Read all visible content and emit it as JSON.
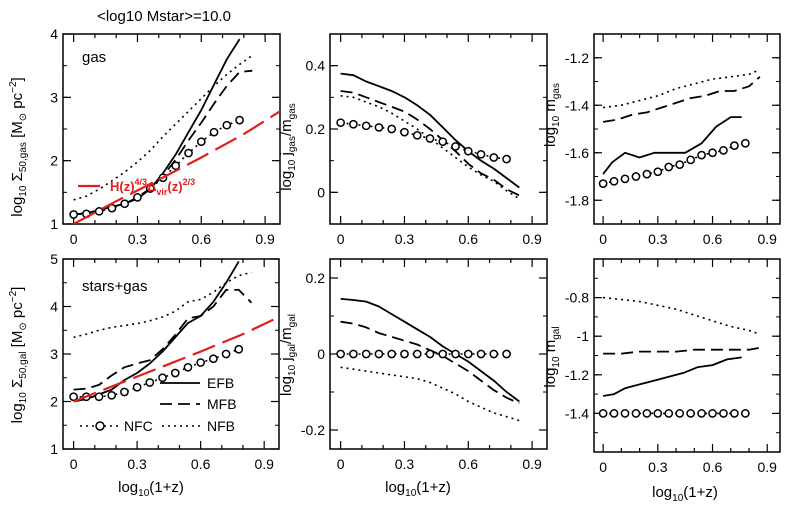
{
  "figure_title": "<log10 Mstar>=10.0",
  "line_styles": {
    "EFB": {
      "dash": "",
      "width": 1.8
    },
    "MFB": {
      "dash": "12,6",
      "width": 1.8
    },
    "NFB": {
      "dash": "2,4",
      "width": 1.6
    },
    "NFC": {
      "dash": "2,4",
      "width": 1.6
    },
    "model": {
      "dash": "24,8",
      "width": 2.2
    }
  },
  "colors": {
    "curves": "#000000",
    "model": "#e0201e"
  },
  "chart_data": [
    {
      "type": "line",
      "id": "gas-surface-density",
      "title": "",
      "inset_label": "gas",
      "xlabel": "",
      "ylabel": "log10 Σ50,gas [M⊙ pc−2]",
      "xlim": [
        -0.05,
        0.97
      ],
      "ylim": [
        1,
        4
      ],
      "xticks": [
        "0",
        "0.3",
        "0.6",
        "0.9"
      ],
      "yticks": [
        "1",
        "2",
        "3",
        "4"
      ],
      "series": [
        {
          "name": "EFB",
          "x": [
            0.0,
            0.06,
            0.12,
            0.18,
            0.24,
            0.3,
            0.36,
            0.42,
            0.48,
            0.54,
            0.6,
            0.66,
            0.72,
            0.78
          ],
          "y": [
            1.15,
            1.17,
            1.22,
            1.27,
            1.32,
            1.4,
            1.55,
            1.8,
            2.1,
            2.45,
            2.8,
            3.2,
            3.6,
            3.92
          ]
        },
        {
          "name": "MFB",
          "x": [
            0.0,
            0.06,
            0.12,
            0.18,
            0.24,
            0.3,
            0.36,
            0.42,
            0.48,
            0.54,
            0.6,
            0.66,
            0.72,
            0.78,
            0.84
          ],
          "y": [
            1.15,
            1.17,
            1.22,
            1.27,
            1.32,
            1.42,
            1.56,
            1.76,
            2.02,
            2.32,
            2.6,
            2.9,
            3.18,
            3.4,
            3.42
          ]
        },
        {
          "name": "NFB",
          "x": [
            0.0,
            0.06,
            0.12,
            0.18,
            0.24,
            0.3,
            0.36,
            0.42,
            0.48,
            0.54,
            0.6,
            0.66,
            0.72,
            0.78,
            0.84
          ],
          "y": [
            1.38,
            1.44,
            1.55,
            1.68,
            1.82,
            1.98,
            2.16,
            2.38,
            2.58,
            2.78,
            2.98,
            3.18,
            3.36,
            3.52,
            3.66
          ]
        },
        {
          "name": "NFC",
          "x": [
            0.0,
            0.06,
            0.12,
            0.18,
            0.24,
            0.3,
            0.36,
            0.42,
            0.48,
            0.54,
            0.6,
            0.66,
            0.72,
            0.78
          ],
          "y": [
            1.15,
            1.16,
            1.2,
            1.25,
            1.32,
            1.42,
            1.56,
            1.73,
            1.92,
            2.12,
            2.3,
            2.45,
            2.56,
            2.64
          ]
        },
        {
          "name": "H(z)4/3Δvir(z)2/3",
          "x": [
            0.0,
            0.2,
            0.4,
            0.6,
            0.8,
            0.97
          ],
          "y": [
            1.0,
            1.36,
            1.7,
            2.05,
            2.42,
            2.78
          ]
        }
      ],
      "legend": [
        {
          "series": "H(z)4/3Δvir(z)2/3",
          "label": "H(z)",
          "sup1": "4/3",
          "mid": "Δ",
          "sub": "vir",
          "tail": "(z)",
          "sup2": "2/3"
        }
      ]
    },
    {
      "type": "line",
      "id": "gas-specific-angular-momentum",
      "title": "",
      "xlabel": "",
      "ylabel": "log10 jgas/mgas",
      "xlim": [
        -0.05,
        0.97
      ],
      "ylim": [
        -0.1,
        0.5
      ],
      "xticks": [
        "0",
        "0.3",
        "0.6",
        "0.9"
      ],
      "yticks": [
        "0",
        "0.2",
        "0.4"
      ],
      "series": [
        {
          "name": "EFB",
          "x": [
            0.0,
            0.06,
            0.12,
            0.18,
            0.24,
            0.3,
            0.36,
            0.42,
            0.48,
            0.54,
            0.6,
            0.66,
            0.72,
            0.78,
            0.84
          ],
          "y": [
            0.375,
            0.37,
            0.35,
            0.335,
            0.32,
            0.3,
            0.275,
            0.245,
            0.205,
            0.165,
            0.13,
            0.1,
            0.075,
            0.045,
            0.015
          ]
        },
        {
          "name": "MFB",
          "x": [
            0.0,
            0.06,
            0.12,
            0.18,
            0.24,
            0.3,
            0.36,
            0.42,
            0.48,
            0.54,
            0.6,
            0.66,
            0.72,
            0.78,
            0.84
          ],
          "y": [
            0.32,
            0.315,
            0.3,
            0.285,
            0.27,
            0.255,
            0.23,
            0.2,
            0.165,
            0.13,
            0.09,
            0.06,
            0.04,
            0.01,
            -0.01
          ]
        },
        {
          "name": "NFB",
          "x": [
            0.0,
            0.06,
            0.12,
            0.18,
            0.24,
            0.3,
            0.36,
            0.42,
            0.48,
            0.54,
            0.6,
            0.66,
            0.72,
            0.78,
            0.84
          ],
          "y": [
            0.305,
            0.3,
            0.285,
            0.27,
            0.25,
            0.225,
            0.2,
            0.17,
            0.14,
            0.11,
            0.08,
            0.055,
            0.035,
            0.005,
            -0.02
          ]
        },
        {
          "name": "NFC",
          "x": [
            0.0,
            0.06,
            0.12,
            0.18,
            0.24,
            0.3,
            0.36,
            0.42,
            0.48,
            0.54,
            0.6,
            0.66,
            0.72,
            0.78
          ],
          "y": [
            0.22,
            0.215,
            0.21,
            0.205,
            0.2,
            0.19,
            0.18,
            0.17,
            0.16,
            0.145,
            0.13,
            0.12,
            0.11,
            0.105
          ]
        }
      ]
    },
    {
      "type": "line",
      "id": "gas-mass-fraction",
      "title": "",
      "xlabel": "",
      "ylabel": "log10 mgas",
      "xlim": [
        -0.05,
        0.97
      ],
      "ylim": [
        -1.9,
        -1.1
      ],
      "xticks": [
        "0",
        "0.3",
        "0.6",
        "0.9"
      ],
      "yticks": [
        "-1.8",
        "-1.6",
        "-1.4",
        "-1.2"
      ],
      "series": [
        {
          "name": "EFB",
          "x": [
            0.0,
            0.05,
            0.12,
            0.2,
            0.28,
            0.36,
            0.45,
            0.54,
            0.62,
            0.7,
            0.76
          ],
          "y": [
            -1.69,
            -1.64,
            -1.6,
            -1.62,
            -1.6,
            -1.6,
            -1.6,
            -1.56,
            -1.49,
            -1.45,
            -1.45
          ]
        },
        {
          "name": "MFB",
          "x": [
            0.0,
            0.08,
            0.16,
            0.24,
            0.32,
            0.4,
            0.48,
            0.56,
            0.64,
            0.72,
            0.8,
            0.86
          ],
          "y": [
            -1.47,
            -1.46,
            -1.44,
            -1.43,
            -1.41,
            -1.39,
            -1.37,
            -1.36,
            -1.34,
            -1.34,
            -1.32,
            -1.28
          ]
        },
        {
          "name": "NFB",
          "x": [
            0.0,
            0.1,
            0.2,
            0.3,
            0.4,
            0.5,
            0.6,
            0.7,
            0.8,
            0.86
          ],
          "y": [
            -1.41,
            -1.4,
            -1.38,
            -1.36,
            -1.33,
            -1.31,
            -1.29,
            -1.28,
            -1.27,
            -1.25
          ]
        },
        {
          "name": "NFC",
          "x": [
            0.0,
            0.06,
            0.12,
            0.18,
            0.24,
            0.3,
            0.36,
            0.42,
            0.48,
            0.54,
            0.6,
            0.66,
            0.72,
            0.78
          ],
          "y": [
            -1.73,
            -1.72,
            -1.71,
            -1.7,
            -1.69,
            -1.68,
            -1.66,
            -1.65,
            -1.63,
            -1.61,
            -1.6,
            -1.59,
            -1.57,
            -1.56
          ]
        }
      ]
    },
    {
      "type": "line",
      "id": "galaxy-surface-density",
      "title": "",
      "inset_label": "stars+gas",
      "xlabel": "log10(1+z)",
      "ylabel": "log10 Σ50,gal [M⊙ pc−2]",
      "xlim": [
        -0.05,
        0.97
      ],
      "ylim": [
        1,
        5
      ],
      "xticks": [
        "0",
        "0.3",
        "0.6",
        "0.9"
      ],
      "yticks": [
        "1",
        "2",
        "3",
        "4",
        "5"
      ],
      "series": [
        {
          "name": "EFB",
          "x": [
            0.0,
            0.06,
            0.12,
            0.18,
            0.24,
            0.3,
            0.36,
            0.42,
            0.48,
            0.54,
            0.6,
            0.66,
            0.72,
            0.78
          ],
          "y": [
            2.0,
            2.05,
            2.15,
            2.25,
            2.45,
            2.6,
            2.8,
            3.05,
            3.35,
            3.65,
            3.8,
            4.1,
            4.5,
            4.95
          ]
        },
        {
          "name": "MFB",
          "x": [
            0.0,
            0.06,
            0.12,
            0.18,
            0.24,
            0.3,
            0.36,
            0.42,
            0.48,
            0.54,
            0.6,
            0.66,
            0.72,
            0.78,
            0.84
          ],
          "y": [
            2.25,
            2.27,
            2.35,
            2.55,
            2.72,
            2.8,
            2.87,
            3.1,
            3.4,
            3.75,
            3.8,
            4.0,
            4.35,
            4.35,
            4.08
          ]
        },
        {
          "name": "NFB",
          "x": [
            0.0,
            0.06,
            0.12,
            0.18,
            0.24,
            0.3,
            0.36,
            0.42,
            0.48,
            0.54,
            0.6,
            0.66,
            0.72,
            0.78,
            0.84
          ],
          "y": [
            3.35,
            3.42,
            3.5,
            3.56,
            3.6,
            3.64,
            3.7,
            3.78,
            3.9,
            4.1,
            4.15,
            4.3,
            4.5,
            4.65,
            4.72
          ]
        },
        {
          "name": "NFC",
          "x": [
            0.0,
            0.06,
            0.12,
            0.18,
            0.24,
            0.3,
            0.36,
            0.42,
            0.48,
            0.54,
            0.6,
            0.66,
            0.72,
            0.78
          ],
          "y": [
            2.1,
            2.1,
            2.1,
            2.13,
            2.2,
            2.3,
            2.4,
            2.5,
            2.6,
            2.72,
            2.82,
            2.9,
            3.0,
            3.1
          ]
        },
        {
          "name": "H(z)4/3Δvir(z)2/3",
          "x": [
            0.0,
            0.2,
            0.4,
            0.6,
            0.8,
            0.97
          ],
          "y": [
            2.0,
            2.35,
            2.7,
            3.05,
            3.42,
            3.78
          ]
        }
      ],
      "legend": [
        {
          "series": "EFB",
          "label": "EFB"
        },
        {
          "series": "MFB",
          "label": "MFB"
        },
        {
          "series": "NFC",
          "label": "NFC"
        },
        {
          "series": "NFB",
          "label": "NFB"
        }
      ]
    },
    {
      "type": "line",
      "id": "galaxy-specific-angular-momentum",
      "title": "",
      "xlabel": "log10(1+z)",
      "ylabel": "log10 jgal/mgal",
      "xlim": [
        -0.05,
        0.97
      ],
      "ylim": [
        -0.25,
        0.25
      ],
      "xticks": [
        "0",
        "0.3",
        "0.6",
        "0.9"
      ],
      "yticks": [
        "-0.2",
        "0",
        "0.2"
      ],
      "series": [
        {
          "name": "EFB",
          "x": [
            0.0,
            0.06,
            0.12,
            0.18,
            0.24,
            0.3,
            0.36,
            0.42,
            0.48,
            0.54,
            0.6,
            0.66,
            0.72,
            0.78,
            0.84
          ],
          "y": [
            0.145,
            0.142,
            0.138,
            0.125,
            0.105,
            0.085,
            0.065,
            0.045,
            0.02,
            0.0,
            -0.02,
            -0.045,
            -0.07,
            -0.1,
            -0.125
          ]
        },
        {
          "name": "MFB",
          "x": [
            0.0,
            0.06,
            0.12,
            0.18,
            0.24,
            0.3,
            0.36,
            0.42,
            0.48,
            0.54,
            0.6,
            0.66,
            0.72,
            0.78,
            0.84
          ],
          "y": [
            0.085,
            0.08,
            0.07,
            0.055,
            0.045,
            0.035,
            0.025,
            0.01,
            -0.005,
            -0.025,
            -0.045,
            -0.07,
            -0.095,
            -0.115,
            -0.13
          ]
        },
        {
          "name": "NFB",
          "x": [
            0.0,
            0.06,
            0.12,
            0.18,
            0.24,
            0.3,
            0.36,
            0.42,
            0.48,
            0.54,
            0.6,
            0.66,
            0.72,
            0.78,
            0.84
          ],
          "y": [
            -0.035,
            -0.04,
            -0.045,
            -0.05,
            -0.055,
            -0.06,
            -0.065,
            -0.075,
            -0.09,
            -0.105,
            -0.125,
            -0.14,
            -0.155,
            -0.165,
            -0.175
          ]
        },
        {
          "name": "NFC",
          "x": [
            0.0,
            0.06,
            0.12,
            0.18,
            0.24,
            0.3,
            0.36,
            0.42,
            0.48,
            0.54,
            0.6,
            0.66,
            0.72,
            0.78
          ],
          "y": [
            0.0,
            0.0,
            0.0,
            0.0,
            0.0,
            0.0,
            0.0,
            0.0,
            0.0,
            0.0,
            0.0,
            0.0,
            0.0,
            0.0
          ]
        }
      ]
    },
    {
      "type": "line",
      "id": "galaxy-mass-fraction",
      "title": "",
      "xlabel": "log10(1+z)",
      "ylabel": "log10 mgal",
      "xlim": [
        -0.05,
        0.97
      ],
      "ylim": [
        -1.6,
        -0.6
      ],
      "xticks": [
        "0",
        "0.3",
        "0.6",
        "0.9"
      ],
      "yticks": [
        "-1.4",
        "-1.2",
        "-1",
        "-0.8"
      ],
      "series": [
        {
          "name": "EFB",
          "x": [
            0.0,
            0.06,
            0.12,
            0.2,
            0.28,
            0.36,
            0.44,
            0.52,
            0.6,
            0.68,
            0.76
          ],
          "y": [
            -1.31,
            -1.3,
            -1.27,
            -1.25,
            -1.23,
            -1.21,
            -1.19,
            -1.16,
            -1.15,
            -1.12,
            -1.11
          ]
        },
        {
          "name": "MFB",
          "x": [
            0.0,
            0.1,
            0.2,
            0.3,
            0.4,
            0.5,
            0.6,
            0.7,
            0.8,
            0.86
          ],
          "y": [
            -1.09,
            -1.09,
            -1.08,
            -1.08,
            -1.08,
            -1.07,
            -1.07,
            -1.07,
            -1.07,
            -1.06
          ]
        },
        {
          "name": "NFB",
          "x": [
            0.0,
            0.1,
            0.2,
            0.3,
            0.4,
            0.5,
            0.6,
            0.7,
            0.8,
            0.86
          ],
          "y": [
            -0.8,
            -0.81,
            -0.82,
            -0.84,
            -0.86,
            -0.89,
            -0.92,
            -0.95,
            -0.97,
            -0.99
          ]
        },
        {
          "name": "NFC",
          "x": [
            0.0,
            0.06,
            0.12,
            0.18,
            0.24,
            0.3,
            0.36,
            0.42,
            0.48,
            0.54,
            0.6,
            0.66,
            0.72,
            0.78
          ],
          "y": [
            -1.4,
            -1.4,
            -1.4,
            -1.4,
            -1.4,
            -1.4,
            -1.4,
            -1.4,
            -1.4,
            -1.4,
            -1.4,
            -1.4,
            -1.4,
            -1.4
          ]
        }
      ]
    }
  ]
}
